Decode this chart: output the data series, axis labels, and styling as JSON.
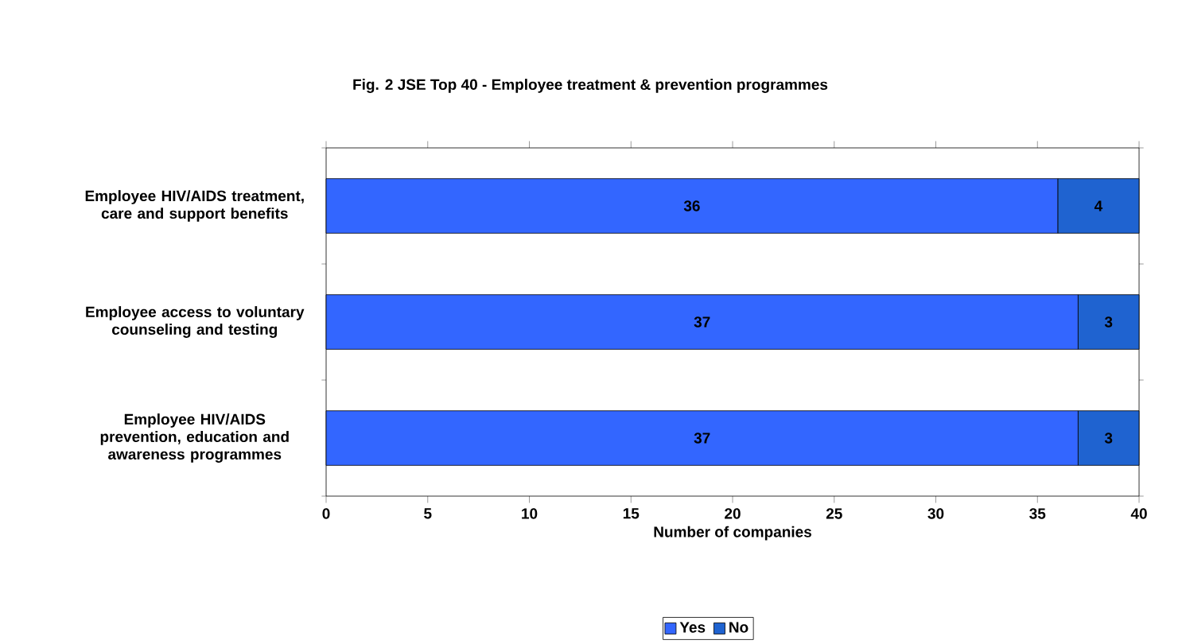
{
  "chart_data": {
    "type": "bar",
    "orientation": "horizontal",
    "stacked": true,
    "title": "Fig. 2 JSE Top 40 - Employee treatment & prevention programmes",
    "xlabel": "Number of companies",
    "categories": [
      "Employee HIV/AIDS treatment, care and support benefits",
      "Employee access to voluntary counseling and testing",
      "Employee HIV/AIDS prevention, education and awareness programmes"
    ],
    "series": [
      {
        "name": "Yes",
        "color": "#3366ff",
        "values": [
          36,
          37,
          37
        ]
      },
      {
        "name": "No",
        "color": "#1f63d0",
        "values": [
          4,
          3,
          3
        ]
      }
    ],
    "xlim": [
      0,
      40
    ],
    "xticks": [
      0,
      5,
      10,
      15,
      20,
      25,
      30,
      35,
      40
    ],
    "data_labels": true,
    "grid": false,
    "legend": "bottom"
  }
}
